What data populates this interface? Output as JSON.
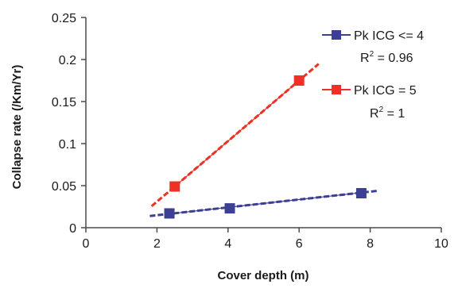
{
  "chart_data": {
    "type": "scatter",
    "xlabel": "Cover depth (m)",
    "ylabel": "Collapse rate (/Km/Yr)",
    "xlim": [
      0,
      10
    ],
    "ylim": [
      0,
      0.25
    ],
    "x_ticks": [
      "0",
      "2",
      "4",
      "6",
      "8",
      "10"
    ],
    "y_ticks": [
      "0",
      "0.05",
      "0.1",
      "0.15",
      "0.2",
      "0.25"
    ],
    "grid": false,
    "legend_position": "top-right",
    "series": [
      {
        "name": "Pk ICG <= 4",
        "r2_label": "R",
        "r2_sup": "2",
        "r2_value": " = 0.96",
        "color": "#3c3f92",
        "marker": "square",
        "points": [
          {
            "x": 2.35,
            "y": 0.017
          },
          {
            "x": 4.05,
            "y": 0.023
          },
          {
            "x": 7.75,
            "y": 0.041
          }
        ],
        "trendline": {
          "x0": 1.8,
          "x1": 8.2,
          "slope": 0.00467,
          "intercept": 0.0055
        },
        "fit_line": {
          "x0": 2.35,
          "x1": 7.75
        }
      },
      {
        "name": "Pk ICG = 5",
        "r2_label": "R",
        "r2_sup": "2",
        "r2_value": " = 1",
        "color": "#ee3124",
        "marker": "square",
        "points": [
          {
            "x": 2.5,
            "y": 0.049
          },
          {
            "x": 6.0,
            "y": 0.175
          }
        ],
        "trendline": {
          "x0": 1.85,
          "x1": 6.55,
          "slope": 0.036,
          "intercept": -0.041
        },
        "fit_line": {
          "x0": 2.5,
          "x1": 6.0
        }
      }
    ]
  }
}
